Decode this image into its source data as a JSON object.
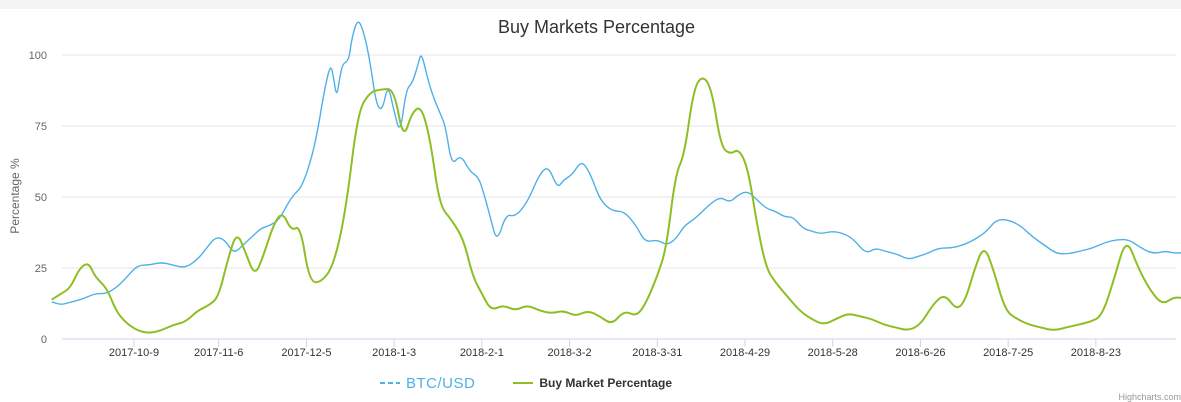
{
  "chart_data": {
    "type": "line",
    "title": "Buy Markets Percentage",
    "ylabel": "Percentage %",
    "xlabel": "",
    "ylim": [
      0,
      115
    ],
    "yticks": [
      0,
      25,
      50,
      75,
      100
    ],
    "grid": true,
    "legend_position": "bottom-center",
    "x_start": "2017-09-12",
    "x_end": "2018-09-27",
    "xticks": [
      "2017-10-9",
      "2017-11-6",
      "2017-12-5",
      "2018-1-3",
      "2018-2-1",
      "2018-3-2",
      "2018-3-31",
      "2018-4-29",
      "2018-5-28",
      "2018-6-26",
      "2018-7-25",
      "2018-8-23"
    ],
    "series": [
      {
        "name": "BTC/USD",
        "color": "#4fb0e8",
        "dash": "dashed",
        "points": [
          [
            "2017-09-12",
            13
          ],
          [
            "2017-09-15",
            12
          ],
          [
            "2017-09-18",
            13
          ],
          [
            "2017-09-22",
            14
          ],
          [
            "2017-09-26",
            16
          ],
          [
            "2017-09-30",
            16
          ],
          [
            "2017-10-03",
            18
          ],
          [
            "2017-10-06",
            21
          ],
          [
            "2017-10-10",
            26
          ],
          [
            "2017-10-14",
            26
          ],
          [
            "2017-10-18",
            27
          ],
          [
            "2017-10-22",
            26
          ],
          [
            "2017-10-26",
            25
          ],
          [
            "2017-10-30",
            28
          ],
          [
            "2017-11-02",
            32
          ],
          [
            "2017-11-05",
            36
          ],
          [
            "2017-11-08",
            35
          ],
          [
            "2017-11-11",
            30
          ],
          [
            "2017-11-14",
            33
          ],
          [
            "2017-11-17",
            36
          ],
          [
            "2017-11-20",
            39
          ],
          [
            "2017-11-23",
            40
          ],
          [
            "2017-11-26",
            42
          ],
          [
            "2017-11-29",
            48
          ],
          [
            "2017-12-01",
            51
          ],
          [
            "2017-12-03",
            53
          ],
          [
            "2017-12-05",
            58
          ],
          [
            "2017-12-07",
            65
          ],
          [
            "2017-12-09",
            75
          ],
          [
            "2017-12-11",
            88
          ],
          [
            "2017-12-13",
            97
          ],
          [
            "2017-12-14",
            92
          ],
          [
            "2017-12-15",
            85
          ],
          [
            "2017-12-16",
            92
          ],
          [
            "2017-12-17",
            97
          ],
          [
            "2017-12-19",
            98
          ],
          [
            "2017-12-20",
            106
          ],
          [
            "2017-12-22",
            113
          ],
          [
            "2017-12-24",
            108
          ],
          [
            "2017-12-26",
            98
          ],
          [
            "2017-12-28",
            83
          ],
          [
            "2017-12-30",
            80
          ],
          [
            "2018-01-01",
            90
          ],
          [
            "2018-01-03",
            80
          ],
          [
            "2018-01-05",
            72
          ],
          [
            "2018-01-07",
            88
          ],
          [
            "2018-01-09",
            90
          ],
          [
            "2018-01-11",
            97
          ],
          [
            "2018-01-12",
            101
          ],
          [
            "2018-01-14",
            92
          ],
          [
            "2018-01-16",
            85
          ],
          [
            "2018-01-18",
            80
          ],
          [
            "2018-01-20",
            75
          ],
          [
            "2018-01-22",
            61
          ],
          [
            "2018-01-25",
            65
          ],
          [
            "2018-01-28",
            59
          ],
          [
            "2018-01-31",
            57
          ],
          [
            "2018-02-02",
            50
          ],
          [
            "2018-02-04",
            42
          ],
          [
            "2018-02-06",
            34
          ],
          [
            "2018-02-09",
            44
          ],
          [
            "2018-02-12",
            43
          ],
          [
            "2018-02-16",
            48
          ],
          [
            "2018-02-20",
            58
          ],
          [
            "2018-02-23",
            61
          ],
          [
            "2018-02-26",
            53
          ],
          [
            "2018-02-28",
            56
          ],
          [
            "2018-03-03",
            58
          ],
          [
            "2018-03-06",
            63
          ],
          [
            "2018-03-09",
            58
          ],
          [
            "2018-03-12",
            49
          ],
          [
            "2018-03-16",
            45
          ],
          [
            "2018-03-20",
            45
          ],
          [
            "2018-03-24",
            40
          ],
          [
            "2018-03-27",
            34
          ],
          [
            "2018-03-31",
            35
          ],
          [
            "2018-04-03",
            33
          ],
          [
            "2018-04-06",
            35
          ],
          [
            "2018-04-09",
            40
          ],
          [
            "2018-04-12",
            42
          ],
          [
            "2018-04-15",
            45
          ],
          [
            "2018-04-18",
            48
          ],
          [
            "2018-04-21",
            50
          ],
          [
            "2018-04-24",
            48
          ],
          [
            "2018-04-27",
            51
          ],
          [
            "2018-04-30",
            52
          ],
          [
            "2018-05-03",
            49
          ],
          [
            "2018-05-06",
            46
          ],
          [
            "2018-05-09",
            45
          ],
          [
            "2018-05-12",
            43
          ],
          [
            "2018-05-15",
            43
          ],
          [
            "2018-05-18",
            39
          ],
          [
            "2018-05-21",
            38
          ],
          [
            "2018-05-24",
            37
          ],
          [
            "2018-05-28",
            38
          ],
          [
            "2018-06-01",
            37
          ],
          [
            "2018-06-04",
            35
          ],
          [
            "2018-06-08",
            30
          ],
          [
            "2018-06-11",
            32
          ],
          [
            "2018-06-14",
            31
          ],
          [
            "2018-06-18",
            30
          ],
          [
            "2018-06-22",
            28
          ],
          [
            "2018-06-25",
            29
          ],
          [
            "2018-06-28",
            30
          ],
          [
            "2018-07-02",
            32
          ],
          [
            "2018-07-06",
            32
          ],
          [
            "2018-07-10",
            33
          ],
          [
            "2018-07-14",
            35
          ],
          [
            "2018-07-18",
            38
          ],
          [
            "2018-07-21",
            42
          ],
          [
            "2018-07-25",
            42
          ],
          [
            "2018-07-29",
            40
          ],
          [
            "2018-08-02",
            36
          ],
          [
            "2018-08-06",
            33
          ],
          [
            "2018-08-10",
            30
          ],
          [
            "2018-08-14",
            30
          ],
          [
            "2018-08-18",
            31
          ],
          [
            "2018-08-22",
            32
          ],
          [
            "2018-08-26",
            34
          ],
          [
            "2018-08-30",
            35
          ],
          [
            "2018-09-03",
            35
          ],
          [
            "2018-09-07",
            32
          ],
          [
            "2018-09-11",
            30
          ],
          [
            "2018-09-15",
            31
          ],
          [
            "2018-09-19",
            30
          ],
          [
            "2018-09-23",
            31
          ],
          [
            "2018-09-27",
            30
          ]
        ]
      },
      {
        "name": "Buy Market Percentage",
        "color": "#8dbf24",
        "dash": "solid",
        "points": [
          [
            "2017-09-12",
            14
          ],
          [
            "2017-09-15",
            16
          ],
          [
            "2017-09-18",
            18
          ],
          [
            "2017-09-21",
            25
          ],
          [
            "2017-09-24",
            27
          ],
          [
            "2017-09-26",
            22
          ],
          [
            "2017-09-30",
            18
          ],
          [
            "2017-10-03",
            10
          ],
          [
            "2017-10-06",
            6
          ],
          [
            "2017-10-10",
            3
          ],
          [
            "2017-10-14",
            2
          ],
          [
            "2017-10-18",
            3
          ],
          [
            "2017-10-22",
            5
          ],
          [
            "2017-10-26",
            6
          ],
          [
            "2017-10-30",
            10
          ],
          [
            "2017-11-03",
            12
          ],
          [
            "2017-11-06",
            15
          ],
          [
            "2017-11-09",
            28
          ],
          [
            "2017-11-12",
            38
          ],
          [
            "2017-11-15",
            30
          ],
          [
            "2017-11-18",
            22
          ],
          [
            "2017-11-21",
            30
          ],
          [
            "2017-11-24",
            40
          ],
          [
            "2017-11-27",
            45
          ],
          [
            "2017-11-30",
            38
          ],
          [
            "2017-12-03",
            40
          ],
          [
            "2017-12-06",
            20
          ],
          [
            "2017-12-10",
            20
          ],
          [
            "2017-12-14",
            26
          ],
          [
            "2017-12-18",
            45
          ],
          [
            "2017-12-22",
            80
          ],
          [
            "2017-12-26",
            87
          ],
          [
            "2017-12-30",
            88
          ],
          [
            "2018-01-03",
            88
          ],
          [
            "2018-01-06",
            70
          ],
          [
            "2018-01-09",
            80
          ],
          [
            "2018-01-12",
            82
          ],
          [
            "2018-01-15",
            70
          ],
          [
            "2018-01-18",
            47
          ],
          [
            "2018-01-22",
            42
          ],
          [
            "2018-01-26",
            35
          ],
          [
            "2018-01-29",
            22
          ],
          [
            "2018-02-01",
            16
          ],
          [
            "2018-02-04",
            10
          ],
          [
            "2018-02-08",
            12
          ],
          [
            "2018-02-12",
            10
          ],
          [
            "2018-02-16",
            12
          ],
          [
            "2018-02-20",
            10
          ],
          [
            "2018-02-24",
            9
          ],
          [
            "2018-02-28",
            10
          ],
          [
            "2018-03-04",
            8
          ],
          [
            "2018-03-08",
            10
          ],
          [
            "2018-03-12",
            8
          ],
          [
            "2018-03-16",
            5
          ],
          [
            "2018-03-20",
            10
          ],
          [
            "2018-03-24",
            8
          ],
          [
            "2018-03-27",
            12
          ],
          [
            "2018-03-31",
            22
          ],
          [
            "2018-04-03",
            32
          ],
          [
            "2018-04-06",
            58
          ],
          [
            "2018-04-09",
            65
          ],
          [
            "2018-04-12",
            88
          ],
          [
            "2018-04-15",
            93
          ],
          [
            "2018-04-18",
            88
          ],
          [
            "2018-04-21",
            68
          ],
          [
            "2018-04-24",
            65
          ],
          [
            "2018-04-27",
            67
          ],
          [
            "2018-04-30",
            60
          ],
          [
            "2018-05-03",
            40
          ],
          [
            "2018-05-06",
            25
          ],
          [
            "2018-05-09",
            20
          ],
          [
            "2018-05-13",
            15
          ],
          [
            "2018-05-17",
            10
          ],
          [
            "2018-05-21",
            7
          ],
          [
            "2018-05-25",
            5
          ],
          [
            "2018-05-29",
            7
          ],
          [
            "2018-06-02",
            9
          ],
          [
            "2018-06-06",
            8
          ],
          [
            "2018-06-10",
            7
          ],
          [
            "2018-06-14",
            5
          ],
          [
            "2018-06-18",
            4
          ],
          [
            "2018-06-22",
            3
          ],
          [
            "2018-06-26",
            5
          ],
          [
            "2018-06-30",
            12
          ],
          [
            "2018-07-04",
            16
          ],
          [
            "2018-07-08",
            10
          ],
          [
            "2018-07-11",
            14
          ],
          [
            "2018-07-14",
            25
          ],
          [
            "2018-07-17",
            33
          ],
          [
            "2018-07-20",
            25
          ],
          [
            "2018-07-24",
            10
          ],
          [
            "2018-07-28",
            7
          ],
          [
            "2018-08-01",
            5
          ],
          [
            "2018-08-05",
            4
          ],
          [
            "2018-08-09",
            3
          ],
          [
            "2018-08-13",
            4
          ],
          [
            "2018-08-17",
            5
          ],
          [
            "2018-08-21",
            6
          ],
          [
            "2018-08-25",
            8
          ],
          [
            "2018-08-29",
            21
          ],
          [
            "2018-09-02",
            36
          ],
          [
            "2018-09-06",
            25
          ],
          [
            "2018-09-10",
            17
          ],
          [
            "2018-09-14",
            12
          ],
          [
            "2018-09-18",
            15
          ],
          [
            "2018-09-22",
            14
          ],
          [
            "2018-09-27",
            14
          ]
        ]
      }
    ]
  },
  "legend": {
    "btc_label": "BTC/USD",
    "buy_label": "Buy Market Percentage"
  },
  "credits": "Highcharts.com"
}
